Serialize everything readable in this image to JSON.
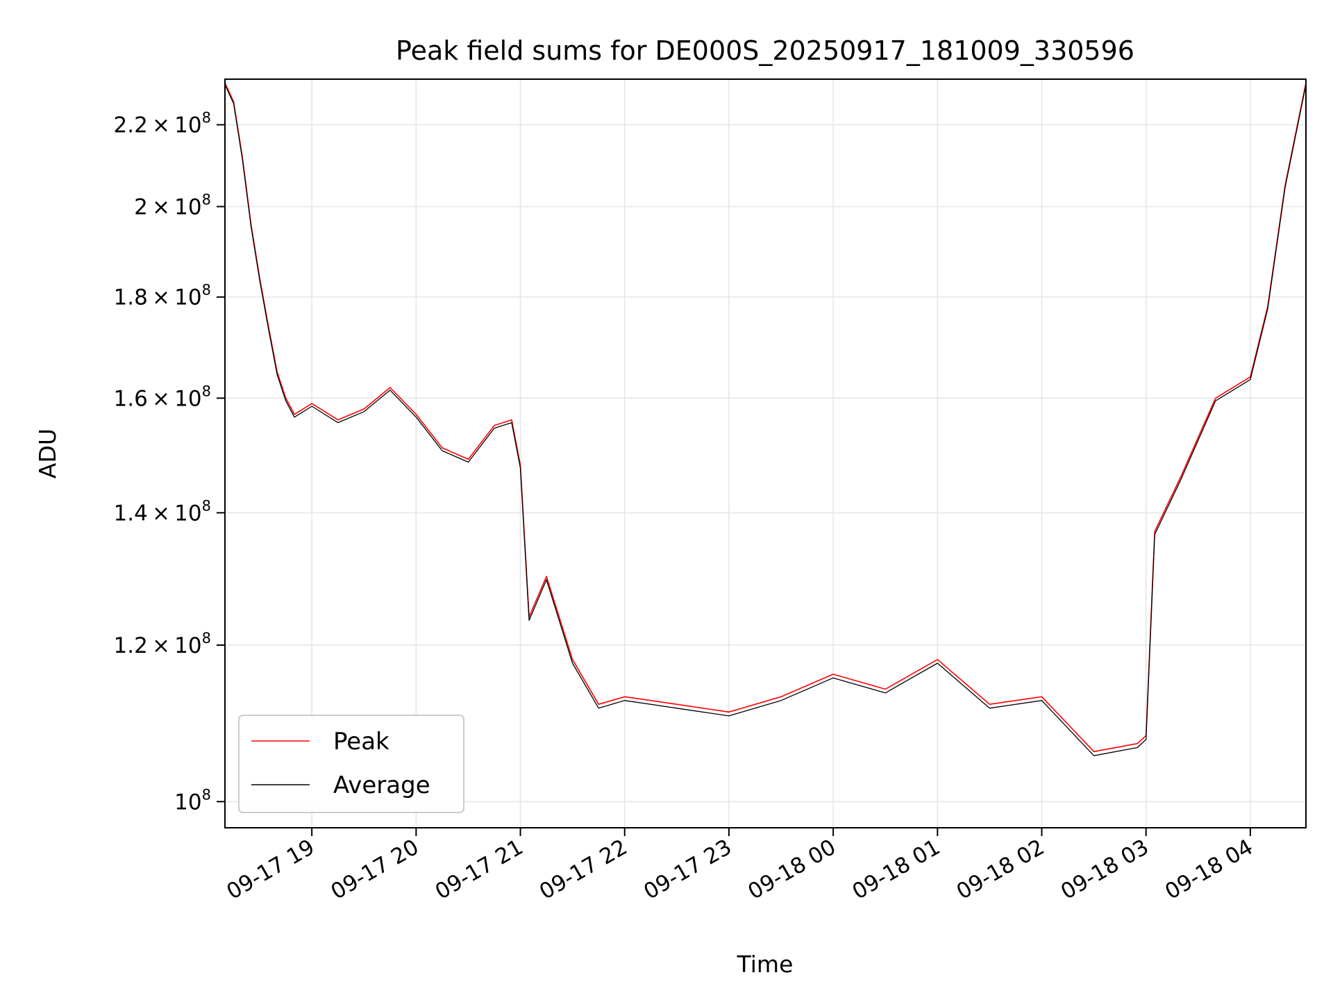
{
  "chart_data": {
    "type": "line",
    "title": "Peak field sums for DE000S_20250917_181009_330596",
    "xlabel": "Time",
    "ylabel": "ADU",
    "y_scale": "log",
    "ylim": [
      97000000,
      232000000
    ],
    "xlim": [
      "2025-09-17 18:10",
      "2025-09-18 04:32"
    ],
    "grid": true,
    "legend_position": "lower-left",
    "x_ticks": [
      "2025-09-17 19:00",
      "2025-09-17 20:00",
      "2025-09-17 21:00",
      "2025-09-17 22:00",
      "2025-09-17 23:00",
      "2025-09-18 00:00",
      "2025-09-18 01:00",
      "2025-09-18 02:00",
      "2025-09-18 03:00",
      "2025-09-18 04:00"
    ],
    "x_tick_labels": [
      "09-17 19",
      "09-17 20",
      "09-17 21",
      "09-17 22",
      "09-17 23",
      "09-18 00",
      "09-18 01",
      "09-18 02",
      "09-18 03",
      "09-18 04"
    ],
    "y_ticks": [
      {
        "value": 100000000,
        "mantissa": "",
        "base": "10",
        "exp": "8"
      },
      {
        "value": 120000000,
        "mantissa": "1.2",
        "base": "10",
        "exp": "8"
      },
      {
        "value": 140000000,
        "mantissa": "1.4",
        "base": "10",
        "exp": "8"
      },
      {
        "value": 160000000,
        "mantissa": "1.6",
        "base": "10",
        "exp": "8"
      },
      {
        "value": 180000000,
        "mantissa": "1.8",
        "base": "10",
        "exp": "8"
      },
      {
        "value": 200000000,
        "mantissa": "2",
        "base": "10",
        "exp": "8"
      },
      {
        "value": 220000000,
        "mantissa": "2.2",
        "base": "10",
        "exp": "8"
      }
    ],
    "series": [
      {
        "name": "Peak",
        "color": "#ff0000",
        "x": [
          "2025-09-17 18:10",
          "2025-09-17 18:15",
          "2025-09-17 18:20",
          "2025-09-17 18:25",
          "2025-09-17 18:30",
          "2025-09-17 18:35",
          "2025-09-17 18:40",
          "2025-09-17 18:45",
          "2025-09-17 18:50",
          "2025-09-17 19:00",
          "2025-09-17 19:15",
          "2025-09-17 19:30",
          "2025-09-17 19:45",
          "2025-09-17 20:00",
          "2025-09-17 20:15",
          "2025-09-17 20:30",
          "2025-09-17 20:45",
          "2025-09-17 20:55",
          "2025-09-17 21:00",
          "2025-09-17 21:05",
          "2025-09-17 21:15",
          "2025-09-17 21:30",
          "2025-09-17 21:45",
          "2025-09-17 22:00",
          "2025-09-17 22:30",
          "2025-09-17 23:00",
          "2025-09-17 23:30",
          "2025-09-18 00:00",
          "2025-09-18 00:30",
          "2025-09-18 01:00",
          "2025-09-18 01:30",
          "2025-09-18 02:00",
          "2025-09-18 02:30",
          "2025-09-18 02:55",
          "2025-09-18 03:00",
          "2025-09-18 03:05",
          "2025-09-18 03:20",
          "2025-09-18 03:40",
          "2025-09-18 04:00",
          "2025-09-18 04:10",
          "2025-09-18 04:20",
          "2025-09-18 04:32"
        ],
        "y": [
          231000000,
          226000000,
          212000000,
          196000000,
          184000000,
          174000000,
          165000000,
          160000000,
          157000000,
          159000000,
          156000000,
          158000000,
          162000000,
          157000000,
          151000000,
          149000000,
          155000000,
          156000000,
          148000000,
          124000000,
          130000000,
          118000000,
          112000000,
          113000000,
          112000000,
          111000000,
          113000000,
          116000000,
          114000000,
          118000000,
          112000000,
          113000000,
          106000000,
          107000000,
          108000000,
          137000000,
          146000000,
          160000000,
          164000000,
          178000000,
          205000000,
          231000000
        ]
      },
      {
        "name": "Average",
        "color": "#000000",
        "x": [
          "2025-09-17 18:10",
          "2025-09-17 18:15",
          "2025-09-17 18:20",
          "2025-09-17 18:25",
          "2025-09-17 18:30",
          "2025-09-17 18:35",
          "2025-09-17 18:40",
          "2025-09-17 18:45",
          "2025-09-17 18:50",
          "2025-09-17 19:00",
          "2025-09-17 19:15",
          "2025-09-17 19:30",
          "2025-09-17 19:45",
          "2025-09-17 20:00",
          "2025-09-17 20:15",
          "2025-09-17 20:30",
          "2025-09-17 20:45",
          "2025-09-17 20:55",
          "2025-09-17 21:00",
          "2025-09-17 21:05",
          "2025-09-17 21:15",
          "2025-09-17 21:30",
          "2025-09-17 21:45",
          "2025-09-17 22:00",
          "2025-09-17 22:30",
          "2025-09-17 23:00",
          "2025-09-17 23:30",
          "2025-09-18 00:00",
          "2025-09-18 00:30",
          "2025-09-18 01:00",
          "2025-09-18 01:30",
          "2025-09-18 02:00",
          "2025-09-18 02:30",
          "2025-09-18 02:55",
          "2025-09-18 03:00",
          "2025-09-18 03:05",
          "2025-09-18 03:20",
          "2025-09-18 03:40",
          "2025-09-18 04:00",
          "2025-09-18 04:10",
          "2025-09-18 04:20",
          "2025-09-18 04:32"
        ],
        "y": [
          230500000,
          225500000,
          211500000,
          195500000,
          183500000,
          173500000,
          164500000,
          159500000,
          156500000,
          158500000,
          155500000,
          157500000,
          161500000,
          156500000,
          150500000,
          148500000,
          154500000,
          155500000,
          147500000,
          123500000,
          129500000,
          117500000,
          111500000,
          112500000,
          111500000,
          110500000,
          112500000,
          115500000,
          113500000,
          117500000,
          111500000,
          112500000,
          105500000,
          106500000,
          107500000,
          136500000,
          145500000,
          159500000,
          163500000,
          177500000,
          204500000,
          230500000
        ]
      }
    ]
  }
}
